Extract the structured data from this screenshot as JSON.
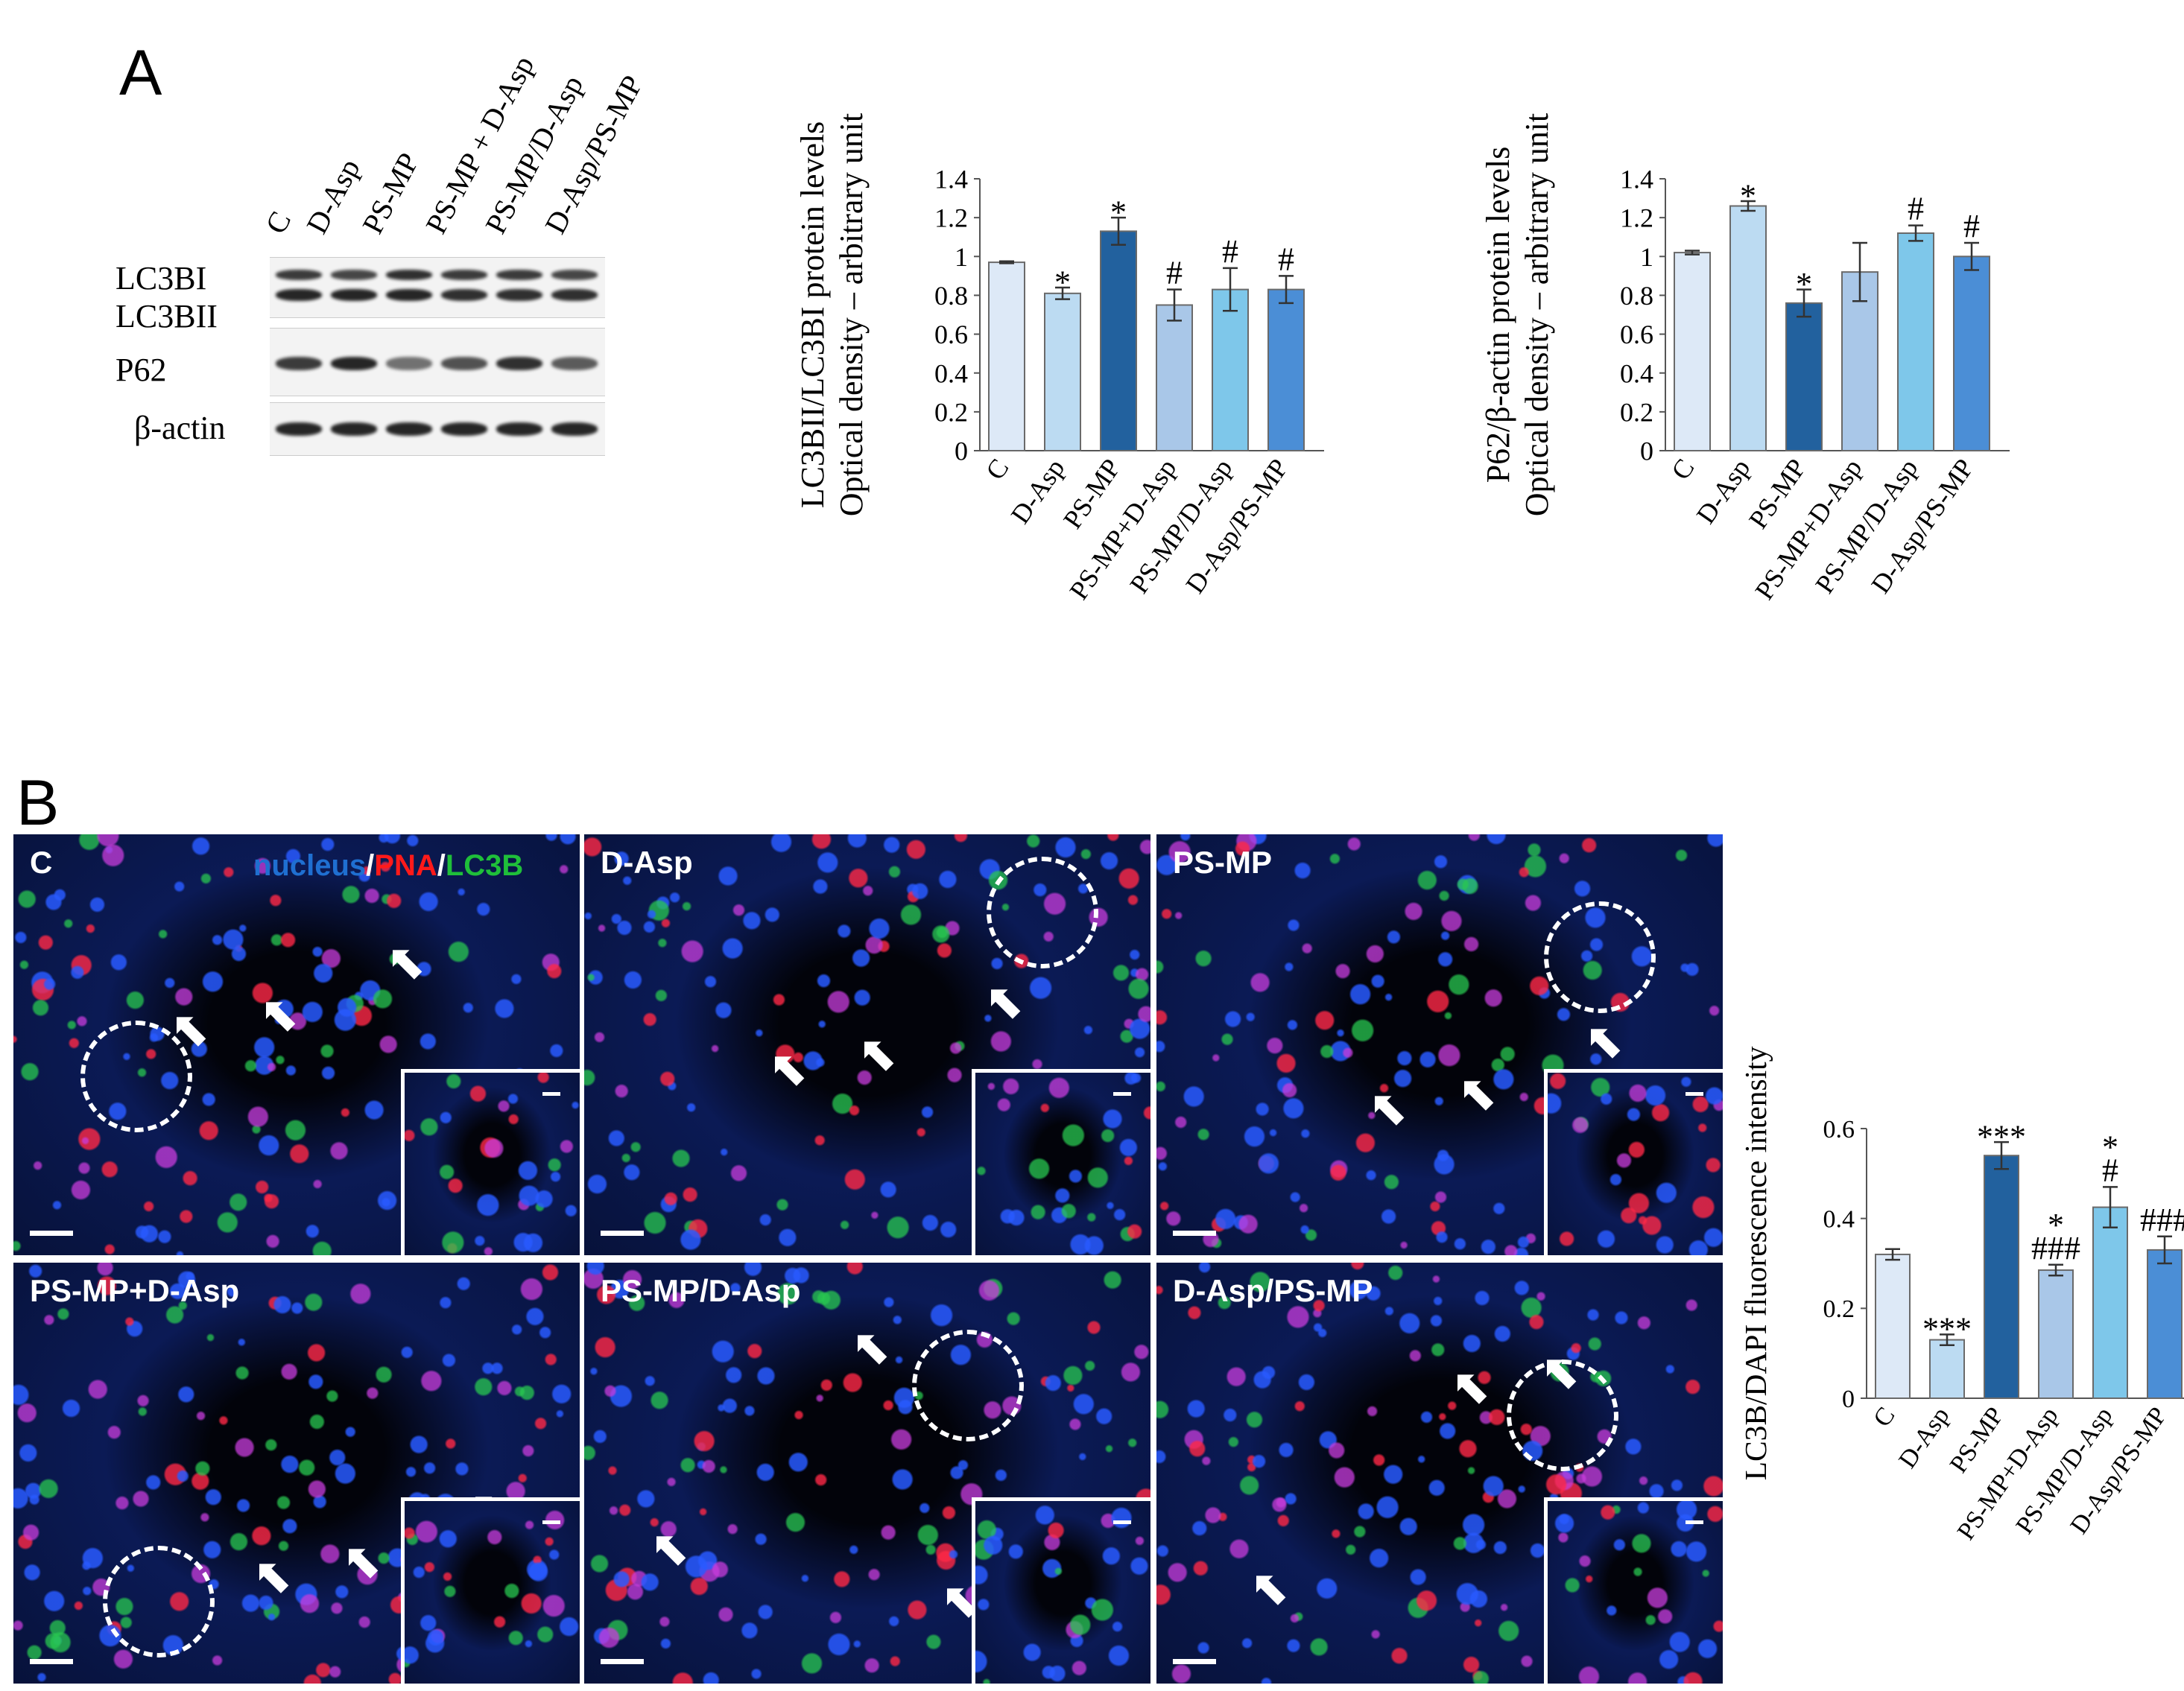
{
  "panel_a": {
    "letter": "A",
    "lanes": [
      "C",
      "D-Asp",
      "PS-MP",
      "PS-MP + D-Asp",
      "PS-MP/D-Asp",
      "D-Asp/PS-MP"
    ],
    "blot_labels": [
      "LC3BI",
      "LC3BII",
      "P62",
      "β-actin"
    ]
  },
  "panel_b": {
    "letter": "B",
    "channel_legend": {
      "nucleus": "nucleus",
      "sep1": "/",
      "pna": "PNA",
      "sep2": "/",
      "lc3b": "LC3B"
    },
    "image_titles": [
      "C",
      "D-Asp",
      "PS-MP",
      "PS-MP+D-Asp",
      "PS-MP/D-Asp",
      "D-Asp/PS-MP"
    ]
  },
  "colors": {
    "bar_fills": [
      "#dde9f7",
      "#bcdbf2",
      "#22619e",
      "#a9c7e8",
      "#7ec7ea",
      "#4b8ed6"
    ],
    "channel_nucleus": "#1f6fd1",
    "channel_pna": "#ff1a1a",
    "channel_lc3b": "#1fbf3a"
  },
  "chart_data": [
    {
      "type": "bar",
      "ylabel_lines": [
        "LC3BII/LC3BI protein levels",
        "Optical density – arbitrary unit"
      ],
      "categories": [
        "C",
        "D-Asp",
        "PS-MP",
        "PS-MP+D-Asp",
        "PS-MP/D-Asp",
        "D-Asp/PS-MP"
      ],
      "values": [
        0.97,
        0.81,
        1.13,
        0.75,
        0.83,
        0.83
      ],
      "errors": [
        0.005,
        0.03,
        0.07,
        0.08,
        0.11,
        0.07
      ],
      "annotations": [
        "",
        "*",
        "*",
        "#",
        "#",
        "#"
      ],
      "ylim": [
        0,
        1.4
      ],
      "yticks": [
        "0",
        "0.2",
        "0.4",
        "0.6",
        "0.8",
        "1",
        "1.2",
        "1.4"
      ]
    },
    {
      "type": "bar",
      "ylabel_lines": [
        "P62/β-actin protein levels",
        "Optical density – arbitrary unit"
      ],
      "categories": [
        "C",
        "D-Asp",
        "PS-MP",
        "PS-MP+D-Asp",
        "PS-MP/D-Asp",
        "D-Asp/PS-MP"
      ],
      "values": [
        1.02,
        1.26,
        0.76,
        0.92,
        1.12,
        1.0
      ],
      "errors": [
        0.01,
        0.025,
        0.07,
        0.15,
        0.04,
        0.07
      ],
      "annotations": [
        "",
        "*",
        "*",
        "",
        "#",
        "#"
      ],
      "ylim": [
        0,
        1.4
      ],
      "yticks": [
        "0",
        "0.2",
        "0.4",
        "0.6",
        "0.8",
        "1",
        "1.2",
        "1.4"
      ]
    },
    {
      "type": "bar",
      "ylabel_lines": [
        "LC3B/DAPI fluorescence intensity"
      ],
      "categories": [
        "C",
        "D-Asp",
        "PS-MP",
        "PS-MP+D-Asp",
        "PS-MP/D-Asp",
        "D-Asp/PS-MP"
      ],
      "values": [
        0.32,
        0.13,
        0.54,
        0.285,
        0.425,
        0.33
      ],
      "errors": [
        0.012,
        0.012,
        0.03,
        0.012,
        0.045,
        0.03
      ],
      "annotations": [
        [],
        [
          "***"
        ],
        [
          "***"
        ],
        [
          "###",
          "*"
        ],
        [
          "#",
          "*"
        ],
        [
          "###"
        ]
      ],
      "ylim": [
        0,
        0.6
      ],
      "yticks": [
        "0",
        "0.2",
        "0.4",
        "0.6"
      ]
    }
  ]
}
